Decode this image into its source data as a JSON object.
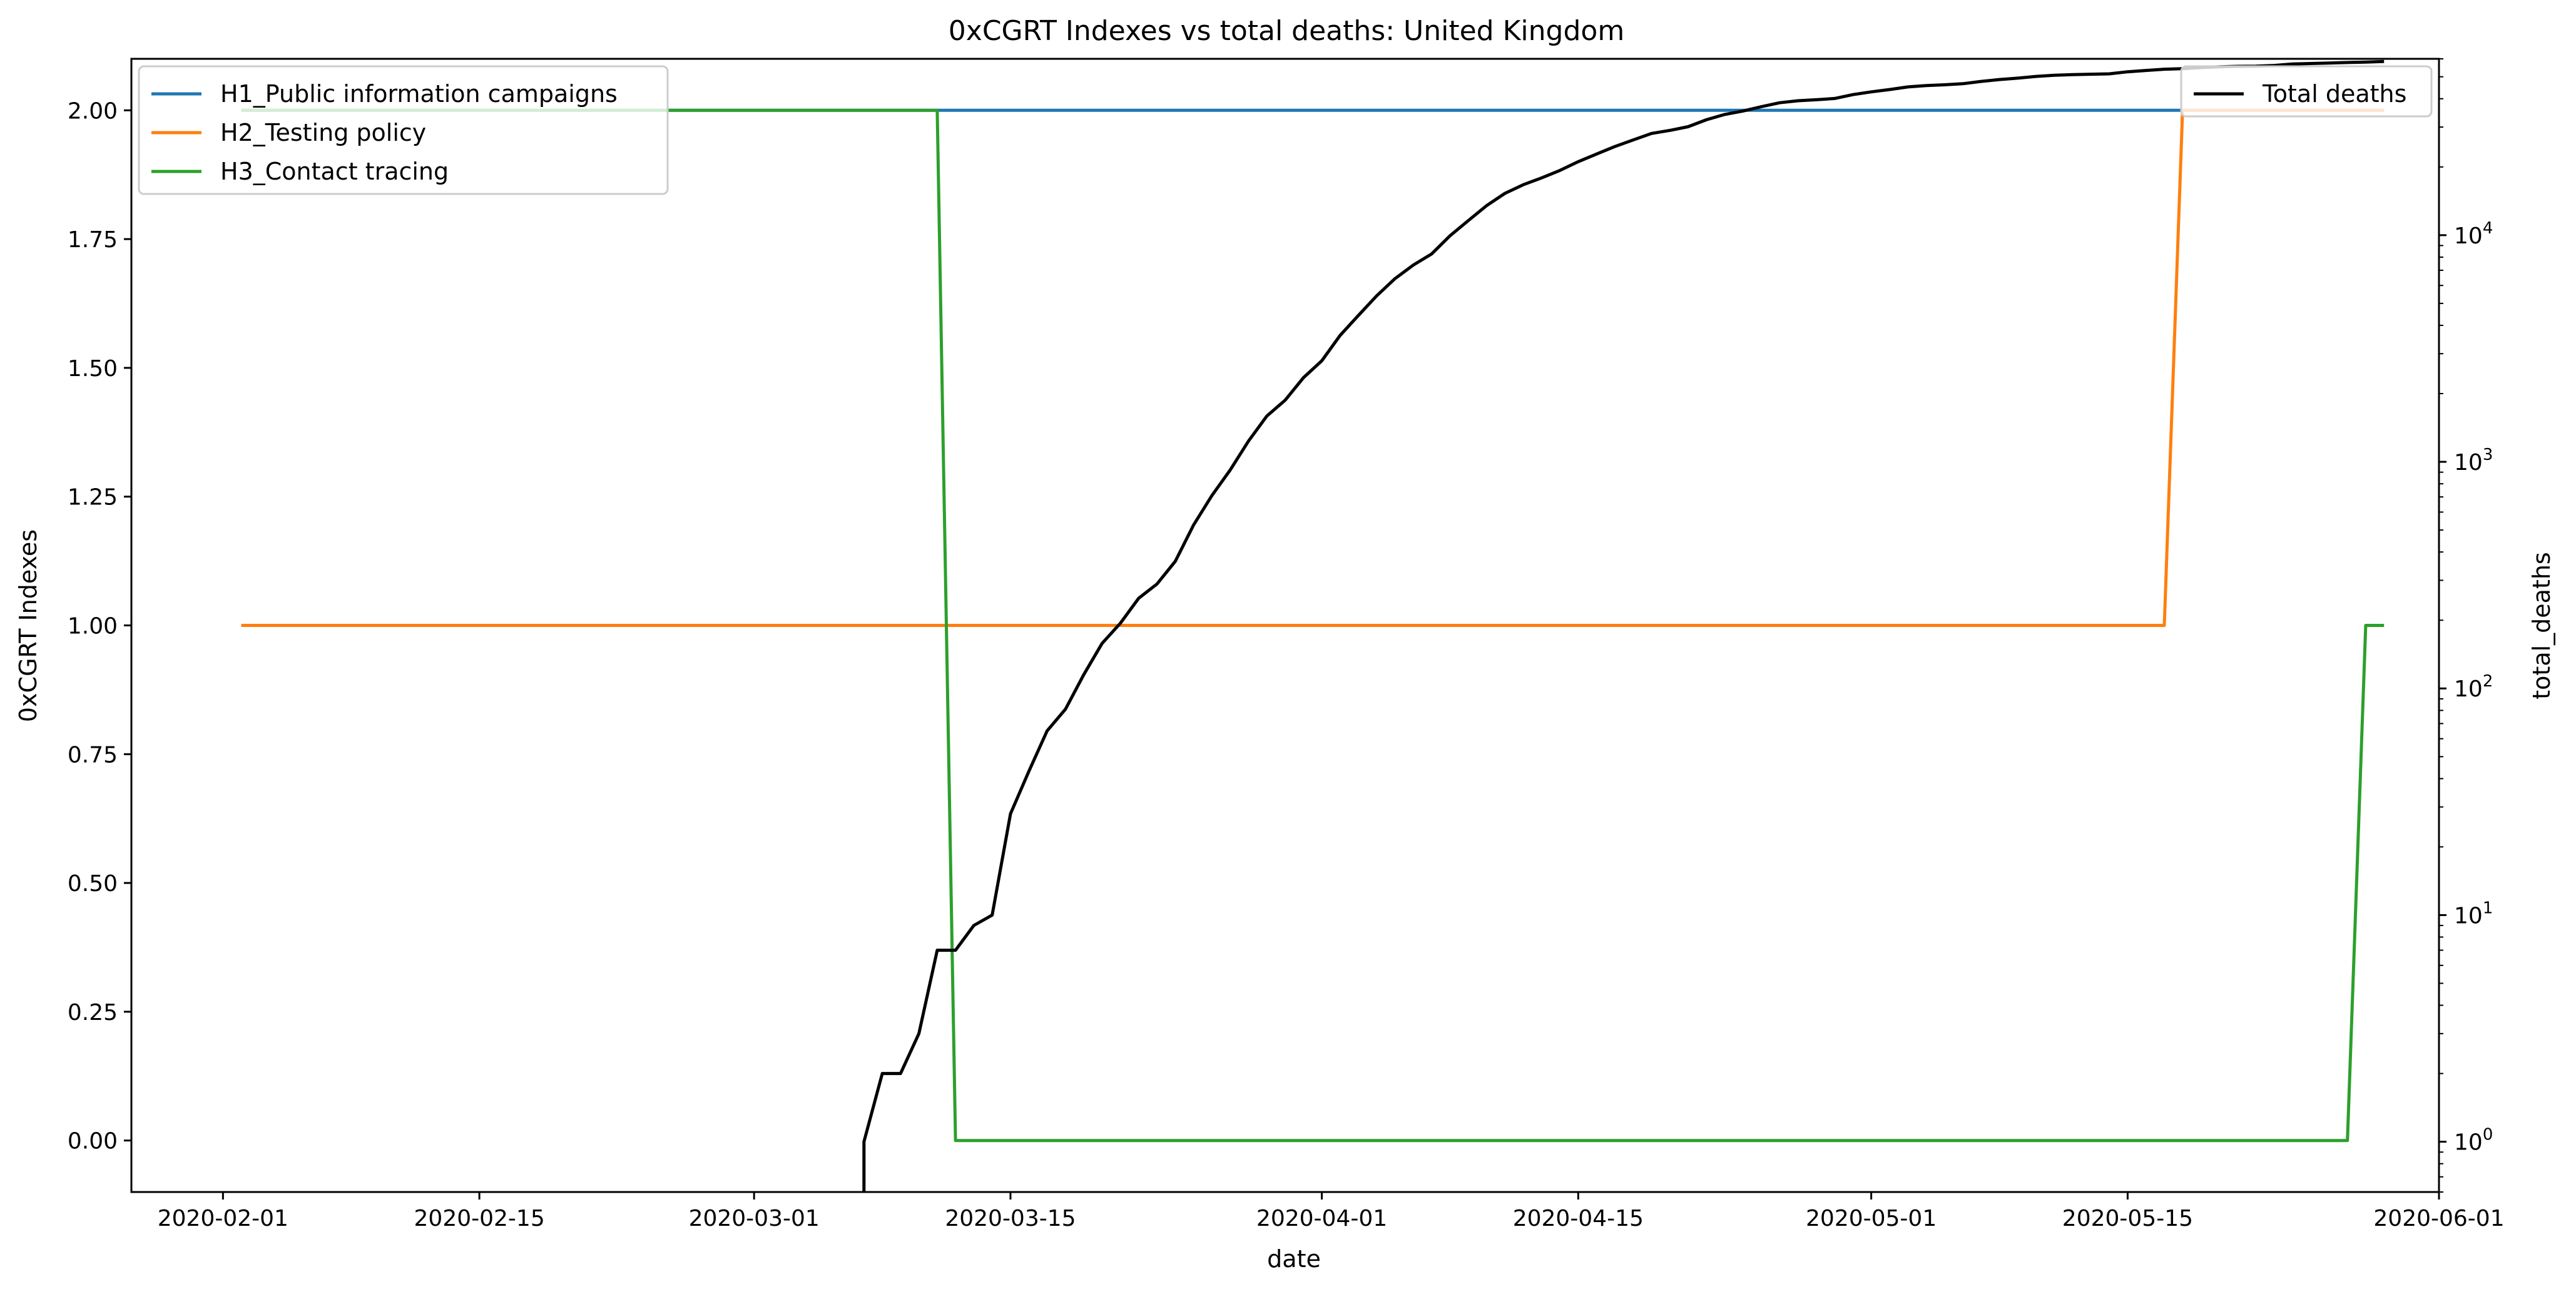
{
  "chart_data": {
    "type": "line",
    "title": "0xCGRT Indexes vs total deaths:  United Kingdom",
    "xlabel": "date",
    "ylabel_left": "0xCGRT Indexes",
    "ylabel_right": "total_deaths",
    "xlim": [
      "2020-01-27",
      "2020-06-01"
    ],
    "ylim_left": [
      -0.1,
      2.1
    ],
    "ylim_right": [
      0.6,
      60000
    ],
    "right_scale": "log",
    "grid": false,
    "x_tick_labels": [
      "2020-02-01",
      "2020-02-15",
      "2020-03-01",
      "2020-03-15",
      "2020-04-01",
      "2020-04-15",
      "2020-05-01",
      "2020-05-15",
      "2020-06-01"
    ],
    "left_tick_values": [
      0.0,
      0.25,
      0.5,
      0.75,
      1.0,
      1.25,
      1.5,
      1.75,
      2.0
    ],
    "left_tick_labels": [
      "0.00",
      "0.25",
      "0.50",
      "0.75",
      "1.00",
      "1.25",
      "1.50",
      "1.75",
      "2.00"
    ],
    "right_tick_values": [
      1,
      10,
      100,
      1000,
      10000
    ],
    "right_tick_labels": [
      {
        "base": "10",
        "exp": "0"
      },
      {
        "base": "10",
        "exp": "1"
      },
      {
        "base": "10",
        "exp": "2"
      },
      {
        "base": "10",
        "exp": "3"
      },
      {
        "base": "10",
        "exp": "4"
      }
    ],
    "legend_left": {
      "placement": "upper-left",
      "entries": [
        "H1_Public information campaigns",
        "H2_Testing policy",
        "H3_Contact tracing"
      ]
    },
    "legend_right": {
      "placement": "upper-right",
      "entries": [
        "Total deaths"
      ]
    },
    "series": [
      {
        "name": "H1_Public information campaigns",
        "axis": "left",
        "color": "#1f77b4",
        "points": [
          [
            "2020-02-02",
            2
          ],
          [
            "2020-05-29",
            2
          ]
        ]
      },
      {
        "name": "H2_Testing policy",
        "axis": "left",
        "color": "#ff7f0e",
        "points": [
          [
            "2020-02-02",
            1
          ],
          [
            "2020-05-17",
            1
          ],
          [
            "2020-05-18",
            2
          ],
          [
            "2020-05-29",
            2
          ]
        ]
      },
      {
        "name": "H3_Contact tracing",
        "axis": "left",
        "color": "#2ca02c",
        "points": [
          [
            "2020-02-02",
            2
          ],
          [
            "2020-03-11",
            2
          ],
          [
            "2020-03-12",
            0
          ],
          [
            "2020-05-27",
            0
          ],
          [
            "2020-05-28",
            1
          ],
          [
            "2020-05-29",
            1
          ]
        ]
      },
      {
        "name": "Total deaths",
        "axis": "right",
        "color": "#000000",
        "points": [
          [
            "2020-03-07",
            0.5
          ],
          [
            "2020-03-07",
            1
          ],
          [
            "2020-03-08",
            2
          ],
          [
            "2020-03-09",
            2
          ],
          [
            "2020-03-10",
            3
          ],
          [
            "2020-03-11",
            7
          ],
          [
            "2020-03-12",
            7
          ],
          [
            "2020-03-13",
            9
          ],
          [
            "2020-03-14",
            10
          ],
          [
            "2020-03-15",
            28
          ],
          [
            "2020-03-16",
            43
          ],
          [
            "2020-03-17",
            65
          ],
          [
            "2020-03-18",
            81
          ],
          [
            "2020-03-19",
            115
          ],
          [
            "2020-03-20",
            158
          ],
          [
            "2020-03-21",
            194
          ],
          [
            "2020-03-22",
            250
          ],
          [
            "2020-03-23",
            289
          ],
          [
            "2020-03-24",
            364
          ],
          [
            "2020-03-25",
            527
          ],
          [
            "2020-03-26",
            710
          ],
          [
            "2020-03-27",
            921
          ],
          [
            "2020-03-28",
            1236
          ],
          [
            "2020-03-29",
            1592
          ],
          [
            "2020-03-30",
            1871
          ],
          [
            "2020-03-31",
            2352
          ],
          [
            "2020-04-01",
            2791
          ],
          [
            "2020-04-02",
            3613
          ],
          [
            "2020-04-03",
            4428
          ],
          [
            "2020-04-04",
            5403
          ],
          [
            "2020-04-05",
            6433
          ],
          [
            "2020-04-06",
            7386
          ],
          [
            "2020-04-07",
            8270
          ],
          [
            "2020-04-08",
            9937
          ],
          [
            "2020-04-09",
            11600
          ],
          [
            "2020-04-10",
            13500
          ],
          [
            "2020-04-11",
            15300
          ],
          [
            "2020-04-12",
            16700
          ],
          [
            "2020-04-13",
            17900
          ],
          [
            "2020-04-14",
            19300
          ],
          [
            "2020-04-15",
            21100
          ],
          [
            "2020-04-16",
            22800
          ],
          [
            "2020-04-17",
            24600
          ],
          [
            "2020-04-18",
            26300
          ],
          [
            "2020-04-19",
            28100
          ],
          [
            "2020-04-20",
            29000
          ],
          [
            "2020-04-21",
            30100
          ],
          [
            "2020-04-22",
            32300
          ],
          [
            "2020-04-23",
            34100
          ],
          [
            "2020-04-24",
            35300
          ],
          [
            "2020-04-25",
            36900
          ],
          [
            "2020-04-26",
            38400
          ],
          [
            "2020-04-27",
            39200
          ],
          [
            "2020-04-28",
            39600
          ],
          [
            "2020-04-29",
            40100
          ],
          [
            "2020-04-30",
            41700
          ],
          [
            "2020-05-01",
            42900
          ],
          [
            "2020-05-02",
            43900
          ],
          [
            "2020-05-03",
            45100
          ],
          [
            "2020-05-04",
            45700
          ],
          [
            "2020-05-05",
            46100
          ],
          [
            "2020-05-06",
            46600
          ],
          [
            "2020-05-07",
            47700
          ],
          [
            "2020-05-08",
            48600
          ],
          [
            "2020-05-09",
            49300
          ],
          [
            "2020-05-10",
            50200
          ],
          [
            "2020-05-11",
            50800
          ],
          [
            "2020-05-12",
            51100
          ],
          [
            "2020-05-13",
            51300
          ],
          [
            "2020-05-14",
            51500
          ],
          [
            "2020-05-15",
            52600
          ],
          [
            "2020-05-16",
            53300
          ],
          [
            "2020-05-17",
            54000
          ],
          [
            "2020-05-18",
            54300
          ],
          [
            "2020-05-19",
            54900
          ],
          [
            "2020-05-20",
            55300
          ],
          [
            "2020-05-21",
            55600
          ],
          [
            "2020-05-22",
            55700
          ],
          [
            "2020-05-23",
            56100
          ],
          [
            "2020-05-24",
            56900
          ],
          [
            "2020-05-25",
            57200
          ],
          [
            "2020-05-26",
            57500
          ],
          [
            "2020-05-27",
            57800
          ],
          [
            "2020-05-28",
            58000
          ],
          [
            "2020-05-29",
            58400
          ]
        ]
      }
    ]
  }
}
